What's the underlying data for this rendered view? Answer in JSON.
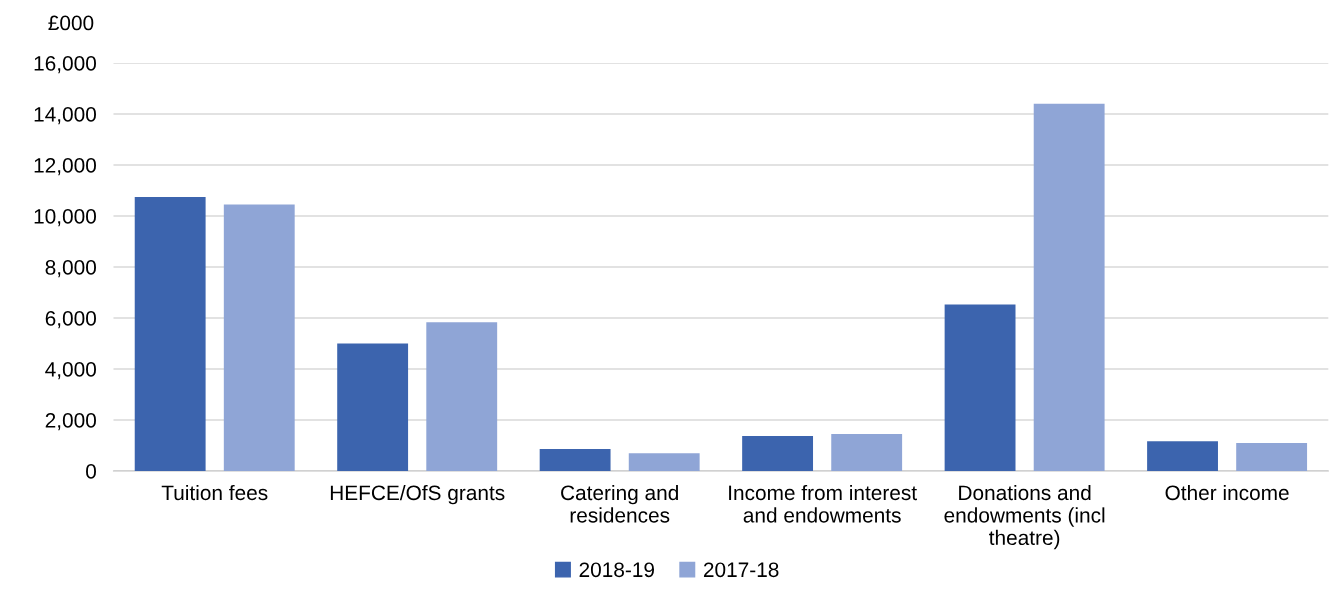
{
  "chart_data": {
    "type": "bar",
    "ylabel": "£000",
    "categories": [
      "Tuition fees",
      "HEFCE/OfS grants",
      "Catering and\nresidences",
      "Income from interest\nand endowments",
      "Donations and\nendowments (incl\ntheatre)",
      "Other income"
    ],
    "series": [
      {
        "name": "2018-19",
        "color": "#3c64ae",
        "values": [
          10750,
          5000,
          860,
          1370,
          6530,
          1170
        ]
      },
      {
        "name": "2017-18",
        "color": "#8fa5d6",
        "values": [
          10450,
          5830,
          700,
          1450,
          14400,
          1100
        ]
      }
    ],
    "ylim": [
      0,
      16000
    ],
    "yticks": [
      {
        "value": 0,
        "label": "0"
      },
      {
        "value": 2000,
        "label": "2,000"
      },
      {
        "value": 4000,
        "label": "4,000"
      },
      {
        "value": 6000,
        "label": "6,000"
      },
      {
        "value": 8000,
        "label": "8,000"
      },
      {
        "value": 10000,
        "label": "10,000"
      },
      {
        "value": 12000,
        "label": "12,000"
      },
      {
        "value": 14000,
        "label": "14,000"
      },
      {
        "value": 16000,
        "label": "16,000"
      }
    ],
    "grid": "y",
    "legend": "bottom"
  }
}
